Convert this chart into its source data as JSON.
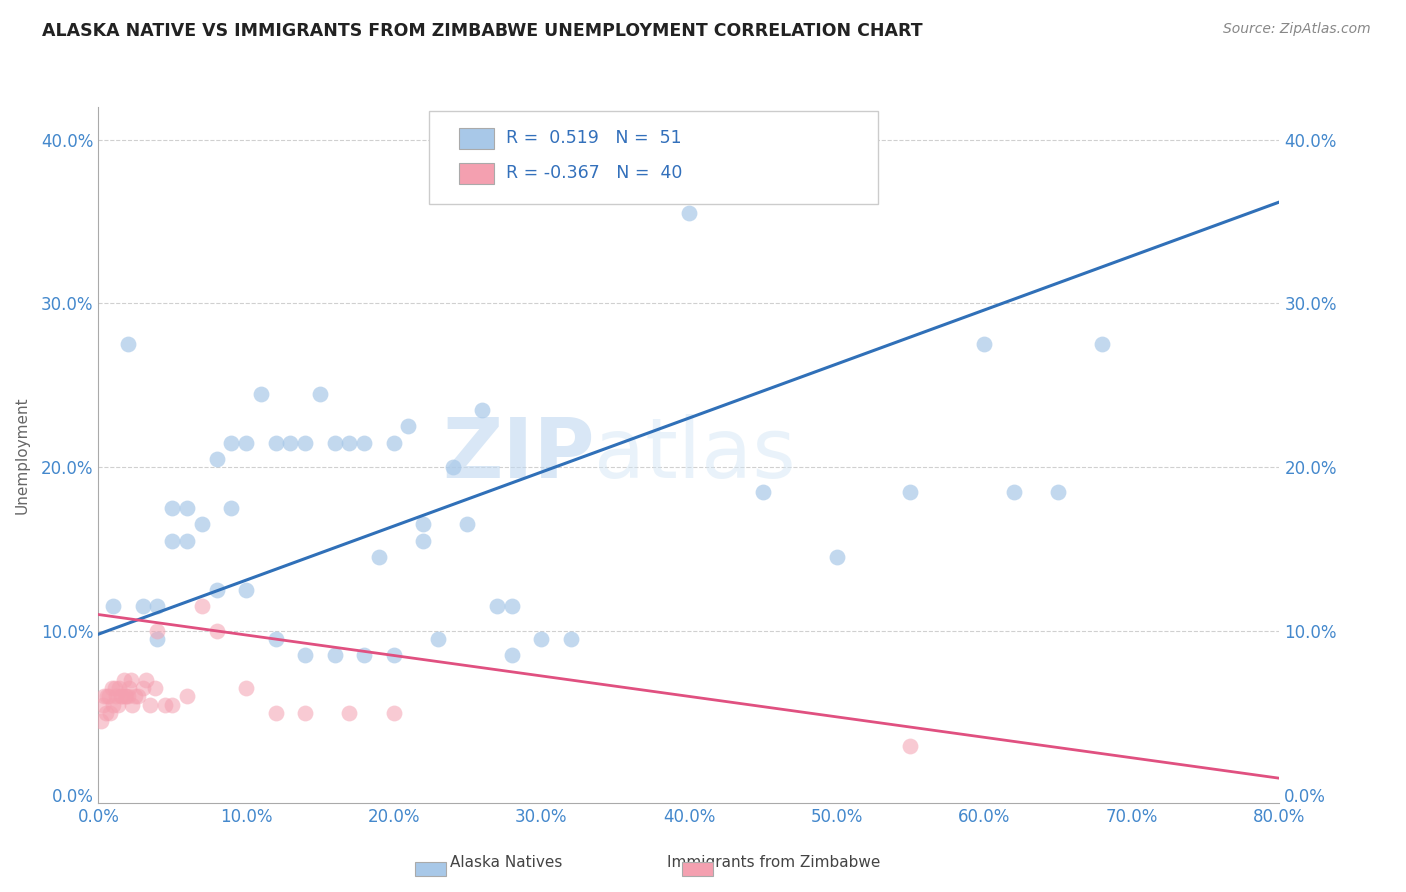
{
  "title": "ALASKA NATIVE VS IMMIGRANTS FROM ZIMBABWE UNEMPLOYMENT CORRELATION CHART",
  "source": "Source: ZipAtlas.com",
  "ylabel": "Unemployment",
  "xlim": [
    0.0,
    0.8
  ],
  "ylim": [
    -0.005,
    0.42
  ],
  "yticks": [
    0.0,
    0.1,
    0.2,
    0.3,
    0.4
  ],
  "xticks": [
    0.0,
    0.1,
    0.2,
    0.3,
    0.4,
    0.5,
    0.6,
    0.7,
    0.8
  ],
  "blue_R": "0.519",
  "blue_N": "51",
  "pink_R": "-0.367",
  "pink_N": "40",
  "blue_color": "#a8c8e8",
  "pink_color": "#f4a0b0",
  "blue_line_color": "#3070b8",
  "pink_line_color": "#e05080",
  "legend_blue_label": "Alaska Natives",
  "legend_pink_label": "Immigrants from Zimbabwe",
  "watermark_zip": "ZIP",
  "watermark_atlas": "atlas",
  "blue_scatter_x": [
    0.01,
    0.02,
    0.03,
    0.04,
    0.05,
    0.05,
    0.06,
    0.07,
    0.08,
    0.09,
    0.09,
    0.1,
    0.11,
    0.12,
    0.13,
    0.14,
    0.15,
    0.16,
    0.17,
    0.18,
    0.19,
    0.2,
    0.21,
    0.22,
    0.22,
    0.24,
    0.25,
    0.26,
    0.27,
    0.28,
    0.3,
    0.32,
    0.4,
    0.45,
    0.5,
    0.55,
    0.6,
    0.62,
    0.65,
    0.68,
    0.04,
    0.06,
    0.08,
    0.1,
    0.12,
    0.14,
    0.16,
    0.18,
    0.2,
    0.23,
    0.28
  ],
  "blue_scatter_y": [
    0.115,
    0.275,
    0.115,
    0.115,
    0.175,
    0.155,
    0.175,
    0.165,
    0.125,
    0.175,
    0.215,
    0.215,
    0.245,
    0.215,
    0.215,
    0.215,
    0.245,
    0.215,
    0.215,
    0.215,
    0.145,
    0.215,
    0.225,
    0.155,
    0.165,
    0.2,
    0.165,
    0.235,
    0.115,
    0.115,
    0.095,
    0.095,
    0.355,
    0.185,
    0.145,
    0.185,
    0.275,
    0.185,
    0.185,
    0.275,
    0.095,
    0.155,
    0.205,
    0.125,
    0.095,
    0.085,
    0.085,
    0.085,
    0.085,
    0.095,
    0.085
  ],
  "pink_scatter_x": [
    0.002,
    0.003,
    0.004,
    0.005,
    0.006,
    0.007,
    0.008,
    0.009,
    0.01,
    0.011,
    0.012,
    0.013,
    0.014,
    0.015,
    0.016,
    0.017,
    0.018,
    0.019,
    0.02,
    0.021,
    0.022,
    0.023,
    0.025,
    0.027,
    0.03,
    0.032,
    0.035,
    0.038,
    0.04,
    0.045,
    0.05,
    0.06,
    0.07,
    0.08,
    0.1,
    0.12,
    0.14,
    0.17,
    0.2,
    0.55
  ],
  "pink_scatter_y": [
    0.045,
    0.055,
    0.06,
    0.05,
    0.06,
    0.06,
    0.05,
    0.065,
    0.055,
    0.065,
    0.06,
    0.055,
    0.065,
    0.06,
    0.06,
    0.07,
    0.06,
    0.06,
    0.06,
    0.065,
    0.07,
    0.055,
    0.06,
    0.06,
    0.065,
    0.07,
    0.055,
    0.065,
    0.1,
    0.055,
    0.055,
    0.06,
    0.115,
    0.1,
    0.065,
    0.05,
    0.05,
    0.05,
    0.05,
    0.03
  ],
  "blue_line_x0": 0.0,
  "blue_line_y0": 0.098,
  "blue_line_x1": 0.8,
  "blue_line_y1": 0.362,
  "pink_line_x0": 0.0,
  "pink_line_y0": 0.11,
  "pink_line_x1": 0.8,
  "pink_line_y1": 0.01,
  "background_color": "#ffffff",
  "grid_color": "#d0d0d0"
}
